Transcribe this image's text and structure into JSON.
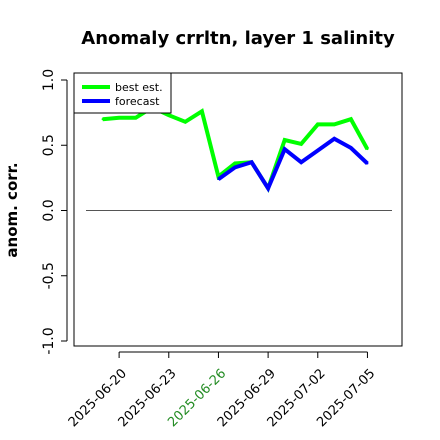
{
  "chart_data": {
    "type": "line",
    "title": "Anomaly crrltn, layer 1 salinity",
    "xlabel": "",
    "ylabel": "anom. corr.",
    "ylim": [
      -1.0,
      1.0
    ],
    "xlim": [
      "2025-06-18",
      "2025-07-06"
    ],
    "yticks": [
      -1.0,
      -0.5,
      0.0,
      0.5,
      1.0
    ],
    "ytick_labels": [
      "-1.0",
      "-0.5",
      "0.0",
      "0.5",
      "1.0"
    ],
    "xticks": [
      "2025-06-20",
      "2025-06-23",
      "2025-06-26",
      "2025-06-29",
      "2025-07-02",
      "2025-07-05"
    ],
    "xtick_labels": [
      "2025-06-20",
      "2025-06-23",
      "2025-06-26",
      "2025-06-29",
      "2025-07-02",
      "2025-07-05"
    ],
    "highlighted_xtick": "2025-06-26",
    "highlight_color": "#228B22",
    "reference_line_y": 0.0,
    "legend_position": "top-left",
    "grid": false,
    "series": [
      {
        "name": "best est.",
        "color": "#00ff00",
        "x": [
          "2025-06-19",
          "2025-06-20",
          "2025-06-21",
          "2025-06-22",
          "2025-06-23",
          "2025-06-24",
          "2025-06-25",
          "2025-06-26",
          "2025-06-27",
          "2025-06-28",
          "2025-06-29",
          "2025-06-30",
          "2025-07-01",
          "2025-07-02",
          "2025-07-03",
          "2025-07-04",
          "2025-07-05"
        ],
        "values": [
          0.7,
          0.71,
          0.71,
          0.79,
          0.73,
          0.68,
          0.76,
          0.26,
          0.36,
          0.37,
          0.17,
          0.54,
          0.51,
          0.66,
          0.66,
          0.7,
          0.47
        ]
      },
      {
        "name": "forecast",
        "color": "#0000ff",
        "x": [
          "2025-06-26",
          "2025-06-27",
          "2025-06-28",
          "2025-06-29",
          "2025-06-30",
          "2025-07-01",
          "2025-07-02",
          "2025-07-03",
          "2025-07-04",
          "2025-07-05"
        ],
        "values": [
          0.24,
          0.33,
          0.37,
          0.17,
          0.47,
          0.37,
          0.46,
          0.55,
          0.48,
          0.36
        ]
      }
    ]
  }
}
